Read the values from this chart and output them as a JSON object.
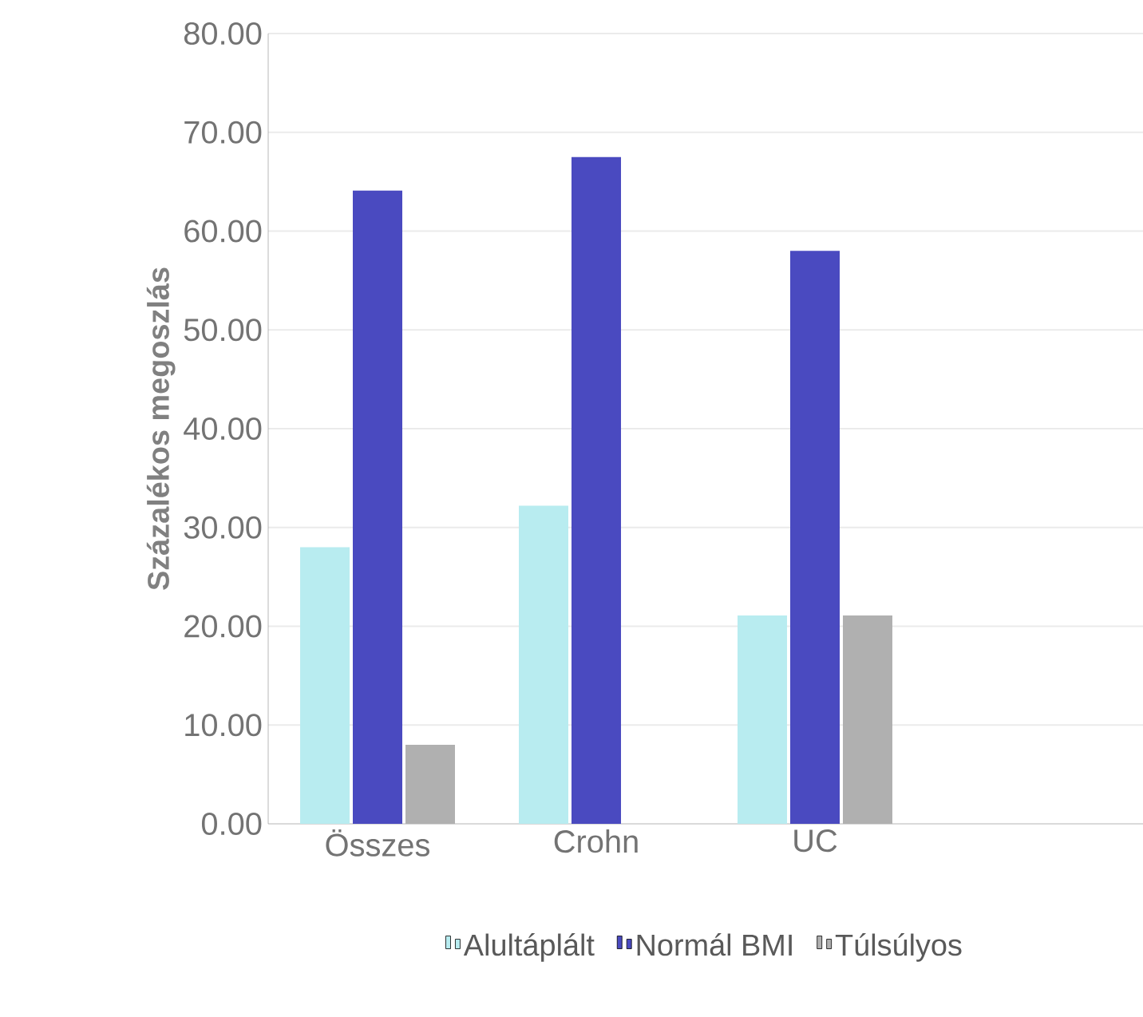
{
  "chart_data": {
    "type": "bar",
    "ylabel": "Százalékos megoszlás",
    "categories": [
      "Összes",
      "Crohn",
      "UC",
      null
    ],
    "series": [
      {
        "name": "Alultáplált",
        "color": "#b8ecf0",
        "values": [
          28.0,
          32.2,
          21.1,
          null
        ]
      },
      {
        "name": "Normál BMI",
        "color": "#4a4ac0",
        "values": [
          64.1,
          67.5,
          58.0,
          null
        ]
      },
      {
        "name": "Túlsúlyos",
        "color": "#b0b0b0",
        "values": [
          8.0,
          null,
          21.1,
          null
        ]
      }
    ],
    "ylim": [
      0,
      80
    ],
    "yticks": [
      {
        "value": 0,
        "label": "0.00"
      },
      {
        "value": 10,
        "label": "10.00"
      },
      {
        "value": 20,
        "label": "20.00"
      },
      {
        "value": 30,
        "label": "30.00"
      },
      {
        "value": 40,
        "label": "40.00"
      },
      {
        "value": 50,
        "label": "50.00"
      },
      {
        "value": 60,
        "label": "60.00"
      },
      {
        "value": 70,
        "label": "70.00"
      },
      {
        "value": 80,
        "label": "80.00"
      }
    ],
    "grid": "y",
    "legend": "bottom"
  }
}
